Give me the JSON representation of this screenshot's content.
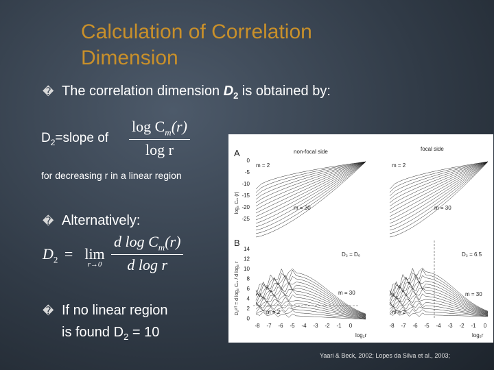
{
  "slide": {
    "title_line1": "Calculation of Correlation",
    "title_line2": "Dimension",
    "bullet_glyph": "�",
    "bullet1": {
      "text_before": "The correlation dimension ",
      "d2_main": "D",
      "d2_sub": "2",
      "text_after": " is obtained by:"
    },
    "slope_label": {
      "main": "D",
      "sub": "2",
      "rest": "=slope of"
    },
    "fraction1": {
      "numerator": "log C",
      "numerator_sub": "m",
      "numerator_arg": "(r)",
      "denominator": "log r"
    },
    "linear_note": "for decreasing r in a linear region",
    "bullet2": "Alternatively:",
    "formula2": {
      "lhs": "D",
      "lhs_sub": "2",
      "eq": "=",
      "lim": "lim",
      "lim_sub": "r→0",
      "numerator": "d log C",
      "numerator_sub": "m",
      "numerator_arg": "(r)",
      "denominator": "d log r"
    },
    "bullet3_line1": "If no linear region",
    "bullet3_line2_before": "is found D",
    "bullet3_line2_sub": "2",
    "bullet3_line2_after": " = 10",
    "citation": "Yaari & Beck, 2002; Lopes da Silva et al., 2003;"
  },
  "figure": {
    "panel_a_label": "A",
    "panel_b_label": "B",
    "nonfocal_label": "non-focal side",
    "focal_label": "focal side",
    "a_y_ticks": [
      "0",
      "-5",
      "-10",
      "-15",
      "-20",
      "-25"
    ],
    "a_ylabel": "log₂ Cₘ (r)",
    "b_y_ticks": [
      "14",
      "12",
      "10",
      "8",
      "6",
      "4",
      "2",
      "0"
    ],
    "b_ylabel": "D₂ᵉᶠᶠ = d log₂ Cₘ / d log₂ r",
    "x_ticks": [
      "-8",
      "-7",
      "-6",
      "-5",
      "-4",
      "-3",
      "-2",
      "-1",
      "0"
    ],
    "x_ticks_right": [
      "-8",
      "-7",
      "-6",
      "-5",
      "-4",
      "-3",
      "-2",
      "-1",
      "0"
    ],
    "xlabel": "log₂r",
    "m2": "m = 2",
    "m30": "m = 30",
    "d2_left": "D₂ = D₀",
    "d2_right": "D₂ = 6.5"
  }
}
